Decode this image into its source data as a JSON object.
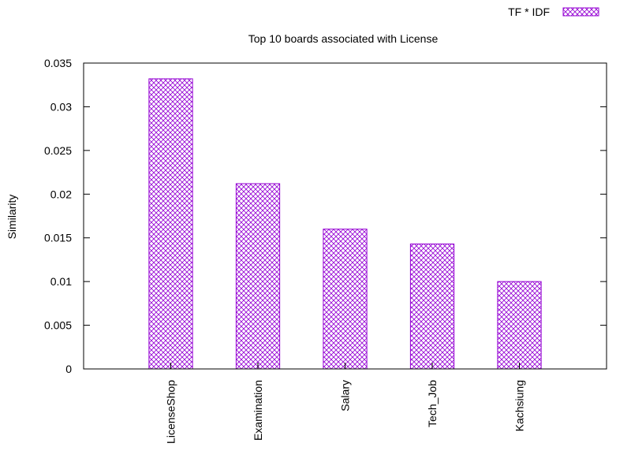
{
  "colors": {
    "bar": "#9400d3",
    "axis": "#000000",
    "background": "#ffffff"
  },
  "chart_data": {
    "type": "bar",
    "title": "Top 10 boards associated with License",
    "xlabel": "",
    "ylabel": "Similarity",
    "categories": [
      "LicenseShop",
      "Examination",
      "Salary",
      "Tech_Job",
      "Kachsiung"
    ],
    "series": [
      {
        "name": "TF * IDF",
        "values": [
          0.0332,
          0.0212,
          0.016,
          0.0143,
          0.01
        ]
      }
    ],
    "ylim": [
      0,
      0.035
    ],
    "yticks": [
      "0",
      "0.005",
      "0.01",
      "0.015",
      "0.02",
      "0.025",
      "0.03",
      "0.035"
    ],
    "legend_position": "top-right",
    "grid": false,
    "bar_fill": "crosshatch"
  }
}
